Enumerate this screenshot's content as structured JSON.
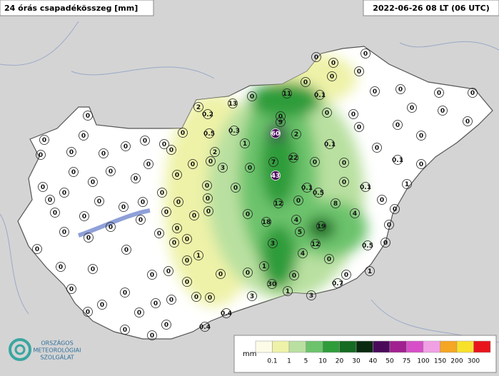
{
  "header": {
    "title": "24 órás csapadékösszeg [mm]",
    "time": "2022-06-26 08 LT (06 UTC)"
  },
  "logo": {
    "lines": [
      "ORSZÁGOS",
      "METEOROLÓGIAI",
      "SZOLGÁLAT"
    ]
  },
  "legend": {
    "unit": "mm",
    "ticks": [
      0.1,
      1,
      5,
      10,
      20,
      30,
      40,
      50,
      75,
      100,
      150,
      200,
      300
    ],
    "colors": [
      "#fbfbe8",
      "#eef2a8",
      "#b9e0a0",
      "#6cc36c",
      "#2f9c3a",
      "#156b22",
      "#0a2a10",
      "#4a0a5a",
      "#a0208f",
      "#d64fc8",
      "#f1a0e4",
      "#f5a623",
      "#f7e12a",
      "#e8141b"
    ]
  },
  "stations": [
    0,
    0,
    0,
    0,
    0,
    0,
    0,
    0,
    0,
    0,
    2,
    0.2,
    13,
    0,
    11,
    0,
    0,
    0,
    0,
    0,
    0,
    0.1,
    0,
    0,
    0,
    0,
    0,
    0,
    0,
    0,
    0,
    0,
    0,
    0,
    0,
    0,
    0.1,
    0,
    0.1,
    0,
    0,
    9,
    60,
    2,
    0.3,
    0.5,
    1,
    2,
    0,
    3,
    7,
    22,
    43,
    0,
    0,
    0,
    0,
    0,
    0.1,
    0.5,
    0,
    0.1,
    1,
    0,
    8,
    12,
    0,
    4,
    18,
    19,
    4,
    5,
    0,
    0,
    3,
    12,
    0.5,
    0,
    0,
    4,
    0,
    1,
    0,
    0,
    0,
    0,
    1,
    0.7,
    30,
    1,
    3,
    3,
    0,
    0.4,
    0.4,
    0,
    0,
    0,
    1,
    0,
    0,
    0,
    0,
    0,
    0,
    0,
    0,
    0,
    0,
    0,
    0,
    0,
    0,
    0,
    0,
    0,
    0,
    0,
    0,
    0,
    0,
    0,
    0,
    0,
    0,
    0,
    0,
    0,
    0,
    0,
    0,
    0,
    0,
    0,
    0,
    0,
    0,
    0,
    0,
    0,
    0,
    0,
    0
  ]
}
